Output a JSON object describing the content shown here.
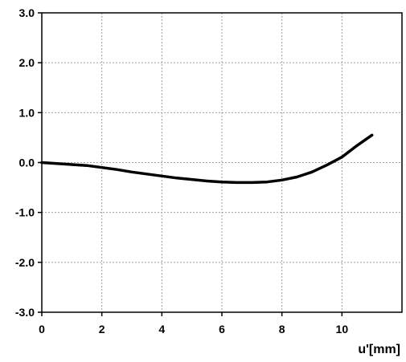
{
  "chart_data": {
    "type": "line",
    "title": "",
    "xlabel": "u'[mm]",
    "ylabel": "",
    "xlim": [
      0,
      12
    ],
    "ylim": [
      -3.0,
      3.0
    ],
    "grid": true,
    "legend": "none",
    "x_ticks": [
      0,
      2,
      4,
      6,
      8,
      10
    ],
    "x_tick_labels": [
      "0",
      "2",
      "4",
      "6",
      "8",
      "10"
    ],
    "y_ticks": [
      3.0,
      2.0,
      1.0,
      0.0,
      -1.0,
      -2.0,
      -3.0
    ],
    "y_tick_labels": [
      "3.0",
      "2.0",
      "1.0",
      "0.0",
      "-1.0",
      "-2.0",
      "-3.0"
    ],
    "series": [
      {
        "color": "#000000",
        "x": [
          0,
          0.5,
          1,
          1.5,
          2,
          2.5,
          3,
          3.5,
          4,
          4.5,
          5,
          5.5,
          6,
          6.5,
          7,
          7.5,
          8,
          8.5,
          9,
          9.5,
          10,
          10.5,
          11
        ],
        "y": [
          0.0,
          -0.02,
          -0.04,
          -0.06,
          -0.1,
          -0.14,
          -0.19,
          -0.23,
          -0.27,
          -0.31,
          -0.34,
          -0.37,
          -0.39,
          -0.4,
          -0.4,
          -0.39,
          -0.35,
          -0.29,
          -0.19,
          -0.05,
          0.11,
          0.34,
          0.55
        ]
      }
    ]
  }
}
